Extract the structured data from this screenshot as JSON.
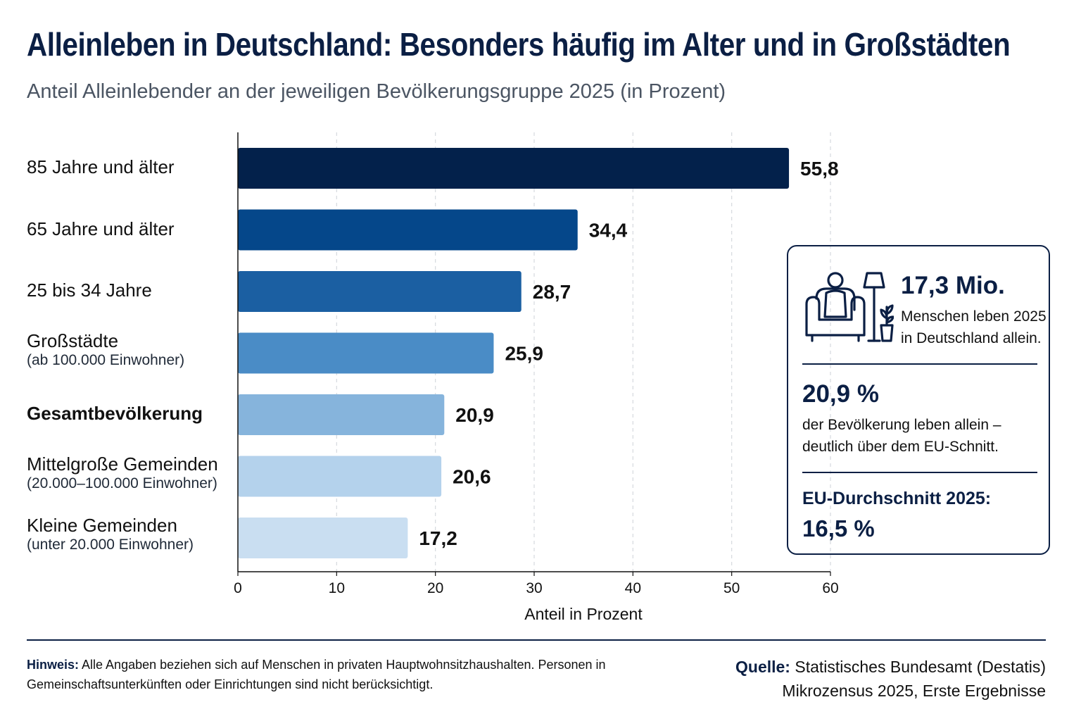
{
  "header": {
    "title": "Alleinleben in Deutschland: Besonders häufig im Alter und in Großstädten",
    "subtitle": "Anteil Alleinlebender an der jeweiligen Bevölkerungsgruppe 2025 (in Prozent)"
  },
  "chart_data": {
    "type": "bar",
    "orientation": "horizontal",
    "title": "Alleinleben in Deutschland: Besonders häufig im Alter und in Großstädten",
    "subtitle": "Anteil Alleinlebender an der jeweiligen Bevölkerungsgruppe 2025 (in Prozent)",
    "xlabel": "Anteil in Prozent",
    "xlim": [
      0,
      60
    ],
    "xticks": [
      0,
      10,
      20,
      30,
      40,
      50,
      60
    ],
    "grid": true,
    "categories": [
      {
        "label": "85 Jahre und älter",
        "sub": "",
        "bold": false
      },
      {
        "label": "65 Jahre und älter",
        "sub": "",
        "bold": false
      },
      {
        "label": "25 bis 34 Jahre",
        "sub": "",
        "bold": false
      },
      {
        "label": "Großstädte",
        "sub": "(ab 100.000 Einwohner)",
        "bold": false
      },
      {
        "label": "Gesamtbevölkerung",
        "sub": "",
        "bold": true
      },
      {
        "label": "Mittelgroße Gemeinden",
        "sub": "(20.000–100.000 Einwohner)",
        "bold": false
      },
      {
        "label": "Kleine Gemeinden",
        "sub": "(unter 20.000 Einwohner)",
        "bold": false
      }
    ],
    "values": [
      55.8,
      34.4,
      28.7,
      25.9,
      20.9,
      20.6,
      17.2
    ],
    "value_labels": [
      "55,8",
      "34,4",
      "28,7",
      "25,9",
      "20,9",
      "20,6",
      "17,2"
    ],
    "colors": [
      "#03214b",
      "#05478a",
      "#1b5fa2",
      "#4a8cc6",
      "#86b4dc",
      "#b4d2ec",
      "#c9def1"
    ]
  },
  "infobox": {
    "stat1_value": "17,3 Mio.",
    "stat1_text": "Menschen leben 2025 in Deutschland allein.",
    "stat1_icon": "person-in-armchair-with-lamp-and-plant-icon",
    "stat2_value": "20,9 %",
    "stat2_text": "der Bevölkerung leben allein – deutlich über dem EU-Schnitt.",
    "stat3_label": "EU-Durchschnitt 2025:",
    "stat3_value": "16,5 %"
  },
  "footer": {
    "note_label": "Hinweis:",
    "note_text": "Alle Angaben beziehen sich auf Menschen in privaten Hauptwohnsitzhaushalten. Personen in Gemeinschaftsunterkünften oder Einrichtungen sind nicht berücksichtigt.",
    "source_label": "Quelle:",
    "source_line1": "Statistisches Bundesamt (Destatis)",
    "source_line2": "Mikrozensus 2025, Erste Ergebnisse"
  }
}
